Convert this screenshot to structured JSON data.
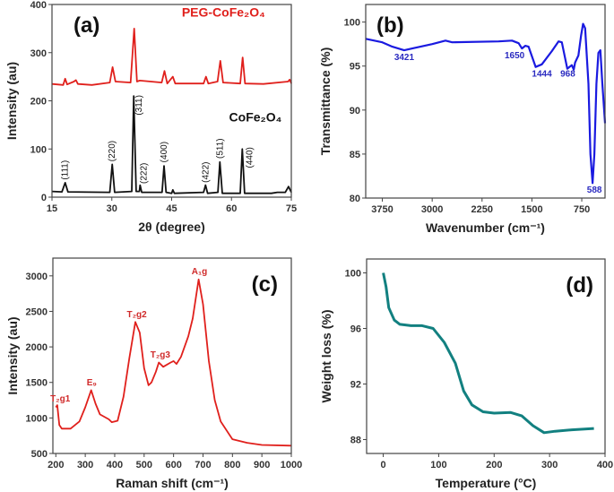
{
  "chart_data": [
    {
      "type": "line",
      "panel_label": "(a)",
      "xlabel": "2θ (degree)",
      "ylabel": "Intensity (au)",
      "xlim": [
        15,
        75
      ],
      "ylim": [
        0,
        400
      ],
      "xticks": [
        15,
        30,
        45,
        60,
        75
      ],
      "yticks": [
        0,
        100,
        200,
        300,
        400
      ],
      "series": [
        {
          "name": "PEG-CoFe₂O₄",
          "color": "#e0201c",
          "points": [
            [
              15,
              235
            ],
            [
              17.8,
              233
            ],
            [
              18.3,
              246
            ],
            [
              18.8,
              234
            ],
            [
              20.5,
              240
            ],
            [
              21,
              243
            ],
            [
              21.5,
              235
            ],
            [
              25,
              233
            ],
            [
              29.5,
              238
            ],
            [
              30.2,
              270
            ],
            [
              30.9,
              240
            ],
            [
              34.7,
              238
            ],
            [
              35.6,
              350
            ],
            [
              36.3,
              240
            ],
            [
              37,
              242
            ],
            [
              42.5,
              238
            ],
            [
              43.2,
              262
            ],
            [
              43.9,
              236
            ],
            [
              45.3,
              250
            ],
            [
              45.9,
              236
            ],
            [
              53,
              236
            ],
            [
              53.6,
              250
            ],
            [
              54.2,
              236
            ],
            [
              56.5,
              240
            ],
            [
              57.2,
              283
            ],
            [
              57.9,
              238
            ],
            [
              62.2,
              236
            ],
            [
              62.8,
              290
            ],
            [
              63.4,
              236
            ],
            [
              68,
              235
            ],
            [
              74.2,
              240
            ],
            [
              74.6,
              244
            ],
            [
              75,
              236
            ]
          ]
        },
        {
          "name": "CoFe₂O₄",
          "color": "#111111",
          "points": [
            [
              15,
              12
            ],
            [
              17.5,
              11
            ],
            [
              18.3,
              30
            ],
            [
              19,
              11
            ],
            [
              29.5,
              10
            ],
            [
              30.1,
              68
            ],
            [
              30.7,
              10
            ],
            [
              35,
              12
            ],
            [
              35.5,
              210
            ],
            [
              36.1,
              12
            ],
            [
              36.9,
              12
            ],
            [
              37.1,
              25
            ],
            [
              37.5,
              10
            ],
            [
              42.6,
              10
            ],
            [
              43.1,
              65
            ],
            [
              43.6,
              10
            ],
            [
              45,
              8
            ],
            [
              45.3,
              15
            ],
            [
              45.7,
              8
            ],
            [
              53,
              10
            ],
            [
              53.5,
              25
            ],
            [
              54,
              8
            ],
            [
              56.6,
              10
            ],
            [
              57.1,
              73
            ],
            [
              57.7,
              8
            ],
            [
              62.2,
              8
            ],
            [
              62.7,
              100
            ],
            [
              63.3,
              8
            ],
            [
              70,
              8
            ],
            [
              71.5,
              10
            ],
            [
              73.5,
              10
            ],
            [
              74.3,
              22
            ],
            [
              75,
              10
            ]
          ]
        }
      ],
      "annotations": [
        {
          "text": "(111)",
          "x": 18.3,
          "y": 36,
          "color": "#111111",
          "rotate": true
        },
        {
          "text": "(220)",
          "x": 30.1,
          "y": 74,
          "color": "#111111",
          "rotate": true
        },
        {
          "text": "(311)",
          "x": 36.8,
          "y": 212,
          "color": "#111111",
          "rotate": true,
          "down": true
        },
        {
          "text": "(222)",
          "x": 38.0,
          "y": 28,
          "color": "#111111",
          "rotate": true
        },
        {
          "text": "(400)",
          "x": 43.1,
          "y": 72,
          "color": "#111111",
          "rotate": true
        },
        {
          "text": "(422)",
          "x": 53.5,
          "y": 30,
          "color": "#111111",
          "rotate": true
        },
        {
          "text": "(511)",
          "x": 57.1,
          "y": 80,
          "color": "#111111",
          "rotate": true
        },
        {
          "text": "(440)",
          "x": 64.5,
          "y": 104,
          "color": "#111111",
          "rotate": true,
          "down": true
        },
        {
          "text": "PEG-CoFe₂O₄",
          "x": 58,
          "y": 375,
          "color": "#e0201c",
          "size": 14
        },
        {
          "text": "CoFe₂O₄",
          "x": 66,
          "y": 157,
          "color": "#111111",
          "size": 14
        }
      ]
    },
    {
      "type": "line",
      "panel_label": "(b)",
      "xlabel": "Wavenumber (cm⁻¹)",
      "ylabel": "Transmittance (%)",
      "xlim": [
        4000,
        400
      ],
      "ylim": [
        80,
        102
      ],
      "xticks": [
        3750,
        3000,
        2250,
        1500,
        750
      ],
      "yticks": [
        80,
        85,
        90,
        95,
        100
      ],
      "series": [
        {
          "color": "#1a1ae0",
          "points": [
            [
              4000,
              98.1
            ],
            [
              3750,
              97.7
            ],
            [
              3600,
              97.2
            ],
            [
              3421,
              96.8
            ],
            [
              3300,
              97.0
            ],
            [
              3000,
              97.5
            ],
            [
              2800,
              97.9
            ],
            [
              2700,
              97.7
            ],
            [
              2000,
              97.8
            ],
            [
              1800,
              97.9
            ],
            [
              1700,
              97.6
            ],
            [
              1650,
              97.0
            ],
            [
              1600,
              97.3
            ],
            [
              1550,
              97.2
            ],
            [
              1444,
              94.9
            ],
            [
              1350,
              95.2
            ],
            [
              1200,
              96.7
            ],
            [
              1100,
              97.8
            ],
            [
              1050,
              97.7
            ],
            [
              968,
              94.7
            ],
            [
              900,
              95.1
            ],
            [
              870,
              94.6
            ],
            [
              850,
              95.4
            ],
            [
              800,
              96.2
            ],
            [
              760,
              98.5
            ],
            [
              730,
              99.8
            ],
            [
              700,
              99.3
            ],
            [
              650,
              93
            ],
            [
              620,
              85
            ],
            [
              588,
              81.7
            ],
            [
              560,
              85
            ],
            [
              530,
              93
            ],
            [
              500,
              96.5
            ],
            [
              470,
              96.8
            ],
            [
              440,
              93
            ],
            [
              400,
              88.5
            ]
          ]
        }
      ],
      "annotations": [
        {
          "text": "3421",
          "x": 3421,
          "y": 95.7,
          "color": "#2a2ac0"
        },
        {
          "text": "1650",
          "x": 1760,
          "y": 95.9,
          "color": "#2a2ac0"
        },
        {
          "text": "1444",
          "x": 1350,
          "y": 93.8,
          "color": "#2a2ac0"
        },
        {
          "text": "968",
          "x": 960,
          "y": 93.8,
          "color": "#2a2ac0"
        },
        {
          "text": "588",
          "x": 560,
          "y": 80.6,
          "color": "#2a2ac0"
        }
      ]
    },
    {
      "type": "line",
      "panel_label": "(c)",
      "xlabel": "Raman shift (cm⁻¹)",
      "ylabel": "Intensity (au)",
      "xlim": [
        190,
        1000
      ],
      "ylim": [
        500,
        3250
      ],
      "xticks": [
        200,
        300,
        400,
        500,
        600,
        700,
        800,
        900,
        1000
      ],
      "yticks": [
        500,
        1000,
        1500,
        2000,
        2500,
        3000
      ],
      "series": [
        {
          "color": "#e0201c",
          "points": [
            [
              200,
              1150
            ],
            [
              205,
              1180
            ],
            [
              212,
              900
            ],
            [
              220,
              850
            ],
            [
              250,
              850
            ],
            [
              280,
              950
            ],
            [
              300,
              1150
            ],
            [
              320,
              1390
            ],
            [
              335,
              1200
            ],
            [
              350,
              1050
            ],
            [
              380,
              980
            ],
            [
              390,
              940
            ],
            [
              410,
              960
            ],
            [
              430,
              1300
            ],
            [
              450,
              1850
            ],
            [
              470,
              2350
            ],
            [
              485,
              2200
            ],
            [
              500,
              1700
            ],
            [
              515,
              1460
            ],
            [
              525,
              1500
            ],
            [
              540,
              1650
            ],
            [
              550,
              1780
            ],
            [
              565,
              1720
            ],
            [
              590,
              1780
            ],
            [
              600,
              1800
            ],
            [
              610,
              1760
            ],
            [
              625,
              1860
            ],
            [
              650,
              2150
            ],
            [
              665,
              2400
            ],
            [
              685,
              2950
            ],
            [
              700,
              2600
            ],
            [
              720,
              1800
            ],
            [
              740,
              1250
            ],
            [
              760,
              950
            ],
            [
              800,
              700
            ],
            [
              850,
              650
            ],
            [
              900,
              620
            ],
            [
              1000,
              610
            ]
          ]
        }
      ],
      "annotations": [
        {
          "text": "T₂g1",
          "x": 215,
          "y": 1230,
          "color": "#d02a2a"
        },
        {
          "text": "E₉",
          "x": 322,
          "y": 1460,
          "color": "#d02a2a"
        },
        {
          "text": "T₂g2",
          "x": 475,
          "y": 2420,
          "color": "#d02a2a"
        },
        {
          "text": "T₂g3",
          "x": 555,
          "y": 1850,
          "color": "#d02a2a"
        },
        {
          "text": "A₁g",
          "x": 688,
          "y": 3020,
          "color": "#d02a2a"
        }
      ]
    },
    {
      "type": "line",
      "panel_label": "(d)",
      "xlabel": "Temperature (°C)",
      "ylabel": "Weight loss (%)",
      "xlim": [
        -30,
        400
      ],
      "ylim": [
        87,
        101
      ],
      "xticks": [
        0,
        100,
        200,
        300,
        400
      ],
      "yticks": [
        88,
        92,
        96,
        100
      ],
      "series": [
        {
          "color": "#128080",
          "points": [
            [
              0,
              100
            ],
            [
              5,
              99
            ],
            [
              10,
              97.5
            ],
            [
              20,
              96.6
            ],
            [
              30,
              96.3
            ],
            [
              50,
              96.2
            ],
            [
              70,
              96.2
            ],
            [
              90,
              96
            ],
            [
              110,
              95
            ],
            [
              130,
              93.5
            ],
            [
              145,
              91.5
            ],
            [
              160,
              90.5
            ],
            [
              180,
              90
            ],
            [
              200,
              89.9
            ],
            [
              230,
              89.95
            ],
            [
              250,
              89.7
            ],
            [
              270,
              89
            ],
            [
              290,
              88.5
            ],
            [
              310,
              88.6
            ],
            [
              340,
              88.7
            ],
            [
              380,
              88.8
            ]
          ]
        }
      ],
      "annotations": []
    }
  ]
}
